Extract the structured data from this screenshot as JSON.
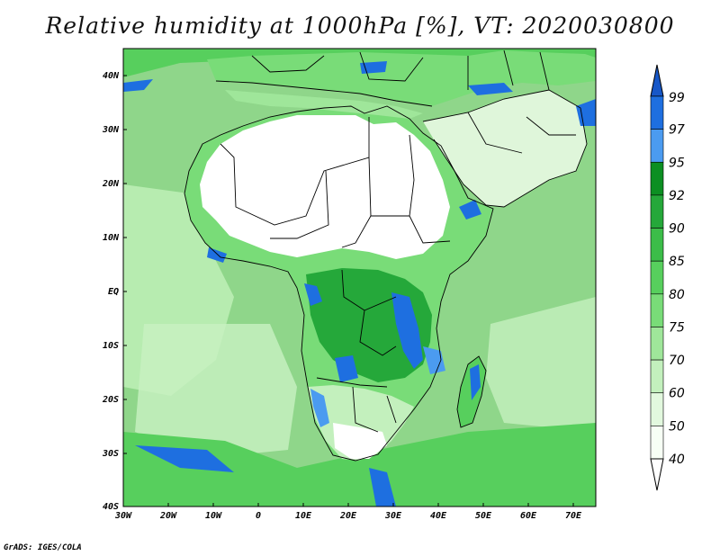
{
  "title": "Relative humidity at 1000hPa [%], VT: 2020030800",
  "credit": "GrADS: IGES/COLA",
  "map": {
    "lat_labels": [
      "40N",
      "30N",
      "20N",
      "10N",
      "EQ",
      "10S",
      "20S",
      "30S",
      "40S"
    ],
    "lon_labels": [
      "30W",
      "20W",
      "10W",
      "0",
      "10E",
      "20E",
      "30E",
      "40E",
      "50E",
      "60E",
      "70E"
    ],
    "ocean_color": "#8fd68a",
    "land_dry_color": "#ffffff"
  },
  "colorbar": {
    "levels": [
      "99",
      "97",
      "95",
      "92",
      "90",
      "85",
      "80",
      "75",
      "70",
      "60",
      "50",
      "40"
    ],
    "colors": [
      "#1e6fe0",
      "#4b9bf0",
      "#0c8f22",
      "#25a83a",
      "#3cbd49",
      "#57cf5d",
      "#79dc78",
      "#9fe69a",
      "#c3f0bd",
      "#e2f8de",
      "#f7fff5"
    ],
    "over_color": "#1757c8",
    "under_color": "#ffffff"
  }
}
